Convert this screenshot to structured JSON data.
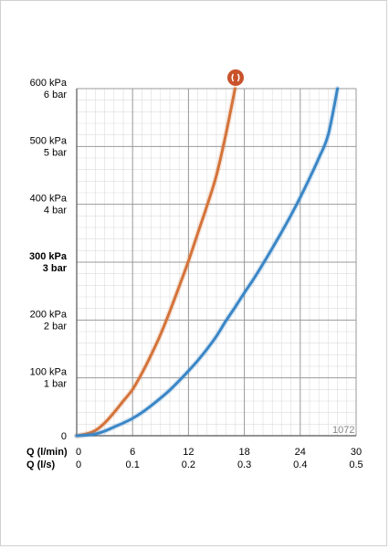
{
  "chart_data": {
    "type": "line",
    "xlabel": "Q (l/min)",
    "xlabel_secondary": "Q (l/s)",
    "xlim": [
      0,
      30
    ],
    "ylim": [
      0,
      600
    ],
    "x_ticks": [
      "0",
      "6",
      "12",
      "18",
      "24",
      "30"
    ],
    "x_ticks_secondary": [
      "0",
      "0.1",
      "0.2",
      "0.3",
      "0.4",
      "0.5"
    ],
    "y_ticks": [
      {
        "value": 0,
        "kpa": "0",
        "bar": ""
      },
      {
        "value": 100,
        "kpa": "100 kPa",
        "bar": "1 bar"
      },
      {
        "value": 200,
        "kpa": "200 kPa",
        "bar": "2 bar"
      },
      {
        "value": 300,
        "kpa": "300 kPa",
        "bar": "3 bar",
        "bold": true
      },
      {
        "value": 400,
        "kpa": "400 kPa",
        "bar": "4 bar"
      },
      {
        "value": 500,
        "kpa": "500 kPa",
        "bar": "5 bar"
      },
      {
        "value": 600,
        "kpa": "600 kPa",
        "bar": "6 bar"
      }
    ],
    "grid": true,
    "series": [
      {
        "color": "#d4733a",
        "x": [
          0,
          1,
          2,
          3,
          4,
          5,
          6,
          7,
          8,
          9,
          10,
          11,
          12,
          13,
          14,
          15,
          16,
          17
        ],
        "y": [
          0,
          3,
          9,
          22,
          40,
          60,
          80,
          108,
          140,
          175,
          215,
          258,
          302,
          350,
          398,
          450,
          520,
          600
        ]
      },
      {
        "color": "#3a86c6",
        "x": [
          0,
          1,
          2,
          3,
          4,
          5,
          6,
          7,
          8,
          9,
          10,
          11,
          12,
          13,
          14,
          15,
          16,
          17,
          18,
          19,
          20,
          21,
          22,
          23,
          24,
          25,
          26,
          27,
          28
        ],
        "y": [
          0,
          1,
          3,
          8,
          15,
          22,
          30,
          40,
          52,
          65,
          79,
          95,
          112,
          130,
          150,
          172,
          198,
          222,
          247,
          271,
          297,
          324,
          352,
          381,
          412,
          445,
          480,
          520,
          600
        ]
      }
    ],
    "marker_icon": "restrictor-icon",
    "marker_color": "#c9522a",
    "annotation": "1072"
  }
}
